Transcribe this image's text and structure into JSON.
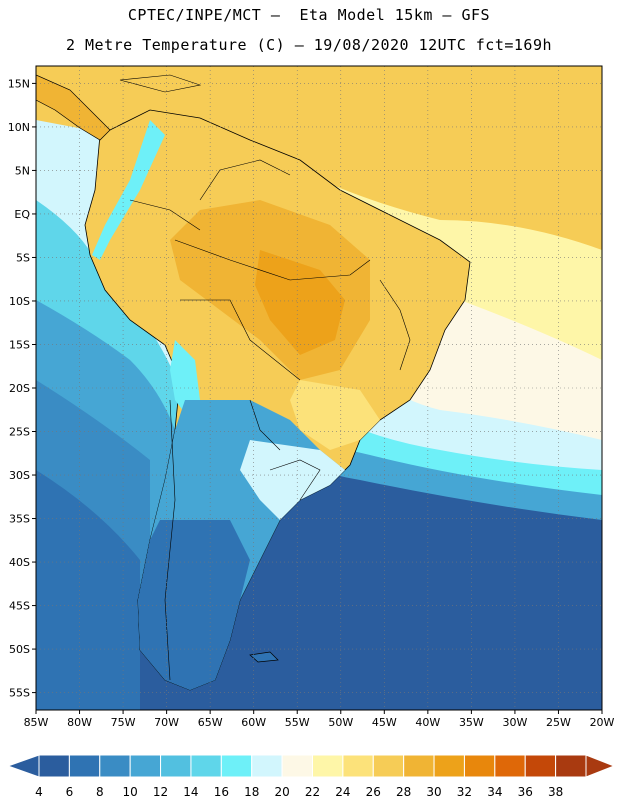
{
  "header": {
    "line1": "CPTEC/INPE/MCT –  Eta Model 15km – GFS",
    "line2": "2 Metre Temperature (C) – 19/08/2020 12UTC fct=169h"
  },
  "map": {
    "lon_range": [
      -85,
      -20
    ],
    "lat_range": [
      -57,
      17
    ],
    "lat_ticks": [
      "15N",
      "10N",
      "5N",
      "EQ",
      "5S",
      "10S",
      "15S",
      "20S",
      "25S",
      "30S",
      "35S",
      "40S",
      "45S",
      "50S",
      "55S"
    ],
    "lon_ticks": [
      "85W",
      "80W",
      "75W",
      "70W",
      "65W",
      "60W",
      "55W",
      "50W",
      "45W",
      "40W",
      "35W",
      "30W",
      "25W",
      "20W"
    ],
    "ocean_color": "#ffffff"
  },
  "colorbar": {
    "labels": [
      "4",
      "6",
      "8",
      "10",
      "12",
      "14",
      "16",
      "18",
      "20",
      "22",
      "24",
      "26",
      "28",
      "30",
      "32",
      "34",
      "36",
      "38"
    ],
    "colors": [
      "#2b5d9e",
      "#2f73b3",
      "#3a8cc4",
      "#46a6d4",
      "#52c0e0",
      "#5fd6ea",
      "#6ef0f8",
      "#d2f6fd",
      "#fdf8e6",
      "#fef6a8",
      "#fce27a",
      "#f6cc56",
      "#f0b434",
      "#eda21a",
      "#e8870c",
      "#df6808",
      "#c44808",
      "#a93a10"
    ]
  }
}
